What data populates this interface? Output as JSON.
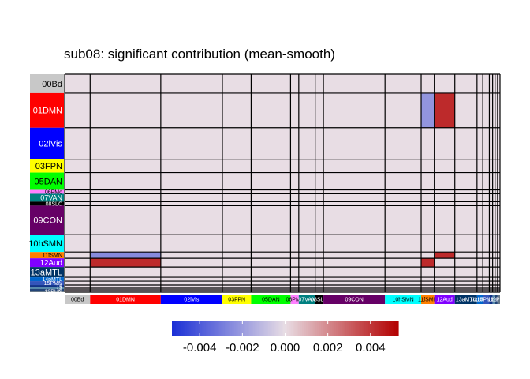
{
  "chart_data": {
    "type": "heatmap",
    "title": "sub08: significant contribution (mean-smooth)",
    "networks": [
      {
        "label": "00Bd",
        "color": "#c8c8c8",
        "text_color": "#000000",
        "row_size": 24,
        "col_size": 31
      },
      {
        "label": "01DMN",
        "color": "#ff0000",
        "text_color": "#ffffff",
        "row_size": 44,
        "col_size": 86
      },
      {
        "label": "02lVis",
        "color": "#0000ff",
        "text_color": "#ffffff",
        "row_size": 40,
        "col_size": 75
      },
      {
        "label": "03FPN",
        "color": "#ffff00",
        "text_color": "#000000",
        "row_size": 17,
        "col_size": 35
      },
      {
        "label": "05DAN",
        "color": "#00ff00",
        "text_color": "#000000",
        "row_size": 22,
        "col_size": 48
      },
      {
        "label": "06PMo",
        "color": "#ff80ff",
        "text_color": "#000000",
        "row_size": 5,
        "col_size": 10
      },
      {
        "label": "07VAN",
        "color": "#008080",
        "text_color": "#ffffff",
        "row_size": 10,
        "col_size": 20
      },
      {
        "label": "08SLC",
        "color": "#000000",
        "text_color": "#ffffff",
        "row_size": 5,
        "col_size": 10
      },
      {
        "label": "09CON",
        "color": "#660066",
        "text_color": "#ffffff",
        "row_size": 37,
        "col_size": 75
      },
      {
        "label": "10hSMN",
        "color": "#00ffff",
        "text_color": "#000000",
        "row_size": 22,
        "col_size": 44
      },
      {
        "label": "11fSMN",
        "color": "#ff8000",
        "text_color": "#000000",
        "row_size": 8,
        "col_size": 16
      },
      {
        "label": "12Aud",
        "color": "#8000ff",
        "text_color": "#ffffff",
        "row_size": 11,
        "col_size": 25
      },
      {
        "label": "13aMTL",
        "color": "#003366",
        "text_color": "#ffffff",
        "row_size": 13,
        "col_size": 27
      },
      {
        "label": "14pMTL",
        "color": "#0066cc",
        "text_color": "#ffffff",
        "row_size": 5,
        "col_size": 7
      },
      {
        "label": "15PMN",
        "color": "#3355bb",
        "text_color": "#ffffff",
        "row_size": 5,
        "col_size": 8
      },
      {
        "label": "16",
        "color": "#113388",
        "text_color": "#ffffff",
        "row_size": 3,
        "col_size": 4
      },
      {
        "label": "17",
        "color": "#5588aa",
        "text_color": "#ffffff",
        "row_size": 2,
        "col_size": 3
      },
      {
        "label": "18",
        "color": "#224477",
        "text_color": "#ffffff",
        "row_size": 2,
        "col_size": 3
      },
      {
        "label": "19PHN",
        "color": "#667788",
        "text_color": "#ffffff",
        "row_size": 2,
        "col_size": 3
      }
    ],
    "cells": [
      {
        "row": "01DMN",
        "col": "11fSMN",
        "value": -0.0022
      },
      {
        "row": "01DMN",
        "col": "12Aud",
        "value": 0.0043
      },
      {
        "row": "11fSMN",
        "col": "01DMN",
        "value": -0.0025
      },
      {
        "row": "11fSMN",
        "col": "12Aud",
        "value": 0.0043
      },
      {
        "row": "12Aud",
        "col": "01DMN",
        "value": 0.0043
      },
      {
        "row": "12Aud",
        "col": "11fSMN",
        "value": 0.0043
      }
    ],
    "colorbar": {
      "ticks": [
        -0.004,
        -0.002,
        0.0,
        0.002,
        0.004
      ],
      "tick_labels": [
        "-0.004",
        "-0.002",
        "0.000",
        "0.002",
        "0.004"
      ],
      "range": [
        -0.0053,
        0.0053
      ],
      "low_color": "#1a2fd6",
      "mid_color": "#e8dde4",
      "high_color": "#b30000"
    },
    "background_color": "#e8dde4",
    "grid": true,
    "legend_position": "bottom"
  }
}
